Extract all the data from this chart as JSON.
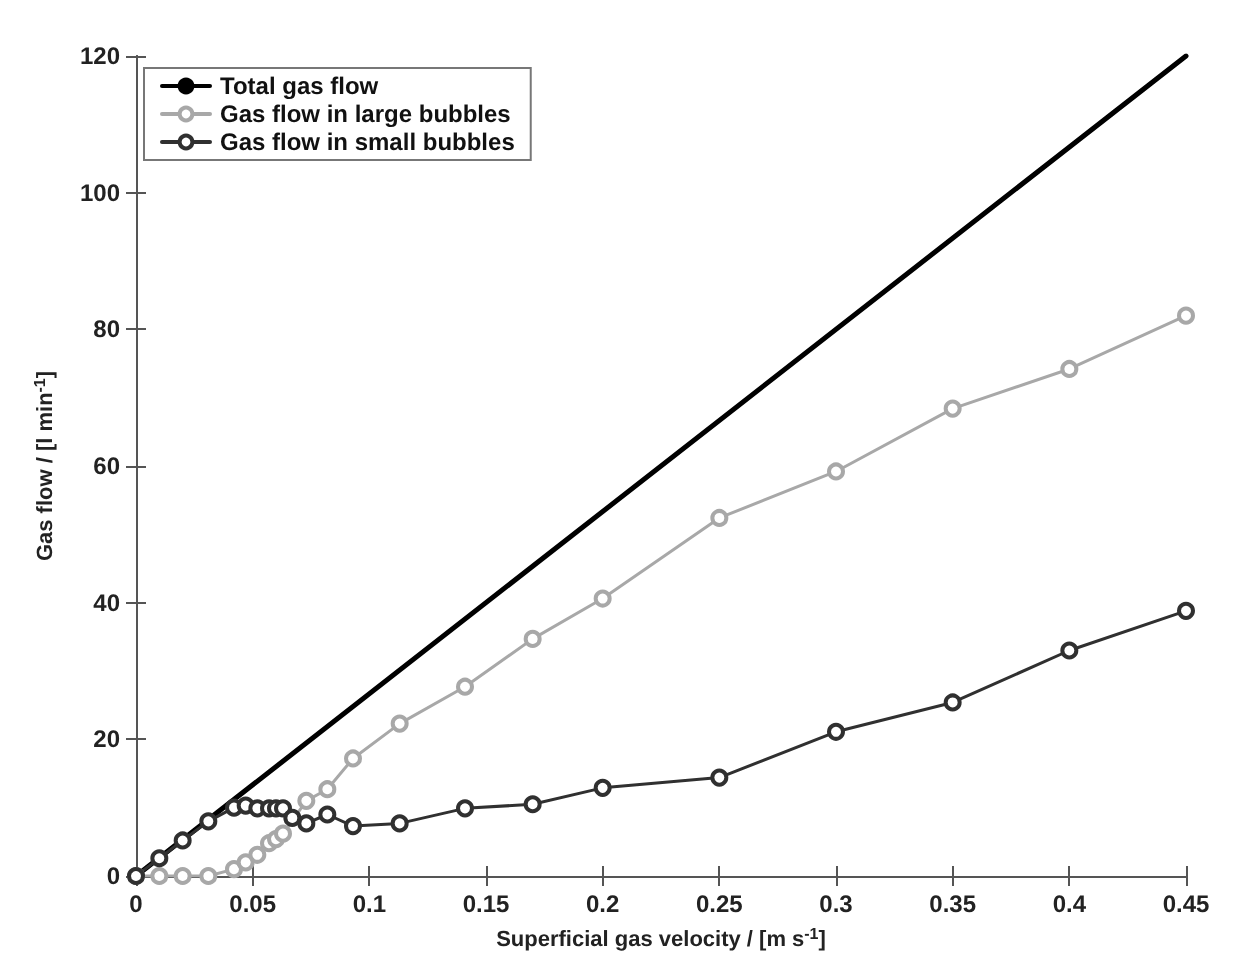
{
  "chart_data": {
    "type": "line",
    "xlabel": "Superficial gas velocity / [m s$^{-1}$]",
    "ylabel": "Gas flow / [l min$^{-1}$]",
    "xlim": [
      0,
      0.45
    ],
    "xticks": [
      0,
      0.05,
      0.1,
      0.15,
      0.2,
      0.25,
      0.3,
      0.35,
      0.4,
      0.45
    ],
    "ylim": [
      0,
      120
    ],
    "yticks": [
      0,
      20,
      40,
      60,
      80,
      100,
      120
    ],
    "grid": false,
    "legend": "top left",
    "marker": "circle",
    "line_style": "solid",
    "series": [
      {
        "name": "Total gas flow",
        "color": "#000000",
        "marker": "none",
        "x": [
          0,
          0.45
        ],
        "values": [
          0,
          120
        ]
      },
      {
        "name": "Gas flow in large bubbles",
        "color": "#a8a8a8",
        "x": [
          0,
          0.01,
          0.02,
          0.031,
          0.042,
          0.047,
          0.052,
          0.057,
          0.06,
          0.063,
          0.073,
          0.082,
          0.093,
          0.113,
          0.141,
          0.17,
          0.2,
          0.25,
          0.3,
          0.35,
          0.4,
          0.45
        ],
        "values": [
          0,
          0,
          0,
          0,
          1,
          2,
          3.1,
          4.8,
          5.4,
          6.2,
          11,
          12.7,
          17.2,
          22.3,
          27.7,
          34.7,
          40.6,
          52.4,
          59.2,
          68.4,
          74.2,
          82
        ]
      },
      {
        "name": "Gas flow in small bubbles",
        "color": "#303030",
        "x": [
          0,
          0.01,
          0.02,
          0.031,
          0.042,
          0.047,
          0.052,
          0.057,
          0.06,
          0.063,
          0.067,
          0.073,
          0.082,
          0.093,
          0.113,
          0.141,
          0.17,
          0.2,
          0.25,
          0.3,
          0.35,
          0.4,
          0.45
        ],
        "values": [
          0,
          2.6,
          5.2,
          8,
          10,
          10.3,
          9.9,
          9.9,
          9.9,
          9.9,
          8.5,
          7.7,
          9,
          7.3,
          7.7,
          9.9,
          10.5,
          12.9,
          14.4,
          21.1,
          25.4,
          33,
          38.8
        ]
      }
    ]
  }
}
